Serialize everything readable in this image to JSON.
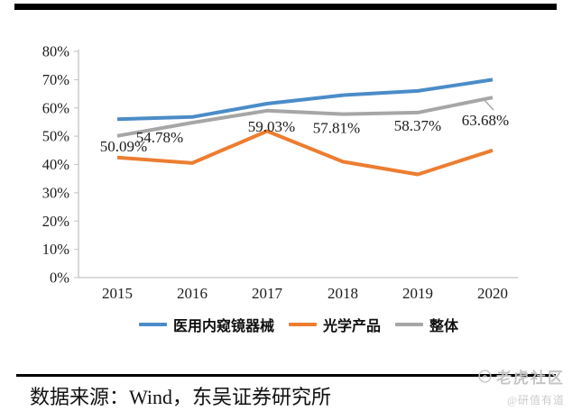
{
  "chart_data": {
    "type": "line",
    "x": [
      "2015",
      "2016",
      "2017",
      "2018",
      "2019",
      "2020"
    ],
    "series": [
      {
        "name": "医用内窥镜器械",
        "color": "#4B8CC8",
        "values": [
          56.0,
          56.8,
          61.5,
          64.5,
          66.0,
          70.0
        ]
      },
      {
        "name": "光学产品",
        "color": "#ED7D31",
        "values": [
          42.5,
          40.5,
          51.8,
          41.0,
          36.5,
          45.0
        ]
      },
      {
        "name": "整体",
        "color": "#A6A6A6",
        "values": [
          50.09,
          54.78,
          59.03,
          57.81,
          58.37,
          63.68
        ]
      }
    ],
    "data_labels": {
      "series": "整体",
      "values": [
        "50.09%",
        "54.78%",
        "59.03%",
        "57.81%",
        "58.37%",
        "63.68%"
      ]
    },
    "y_ticks": [
      "0%",
      "10%",
      "20%",
      "30%",
      "40%",
      "50%",
      "60%",
      "70%",
      "80%"
    ],
    "ylim": [
      0,
      80
    ],
    "grid": false,
    "legend_position": "bottom",
    "title": "",
    "xlabel": "",
    "ylabel": "",
    "axis_color": "#c3c3c3",
    "label_color": "#1a1a1a"
  },
  "footer": {
    "source_text": "数据来源：Wind，东吴证券研究所"
  },
  "watermark": {
    "logo_icon": "tiger-logo-icon",
    "brand": "老虎社区",
    "handle": "@研值有道"
  }
}
